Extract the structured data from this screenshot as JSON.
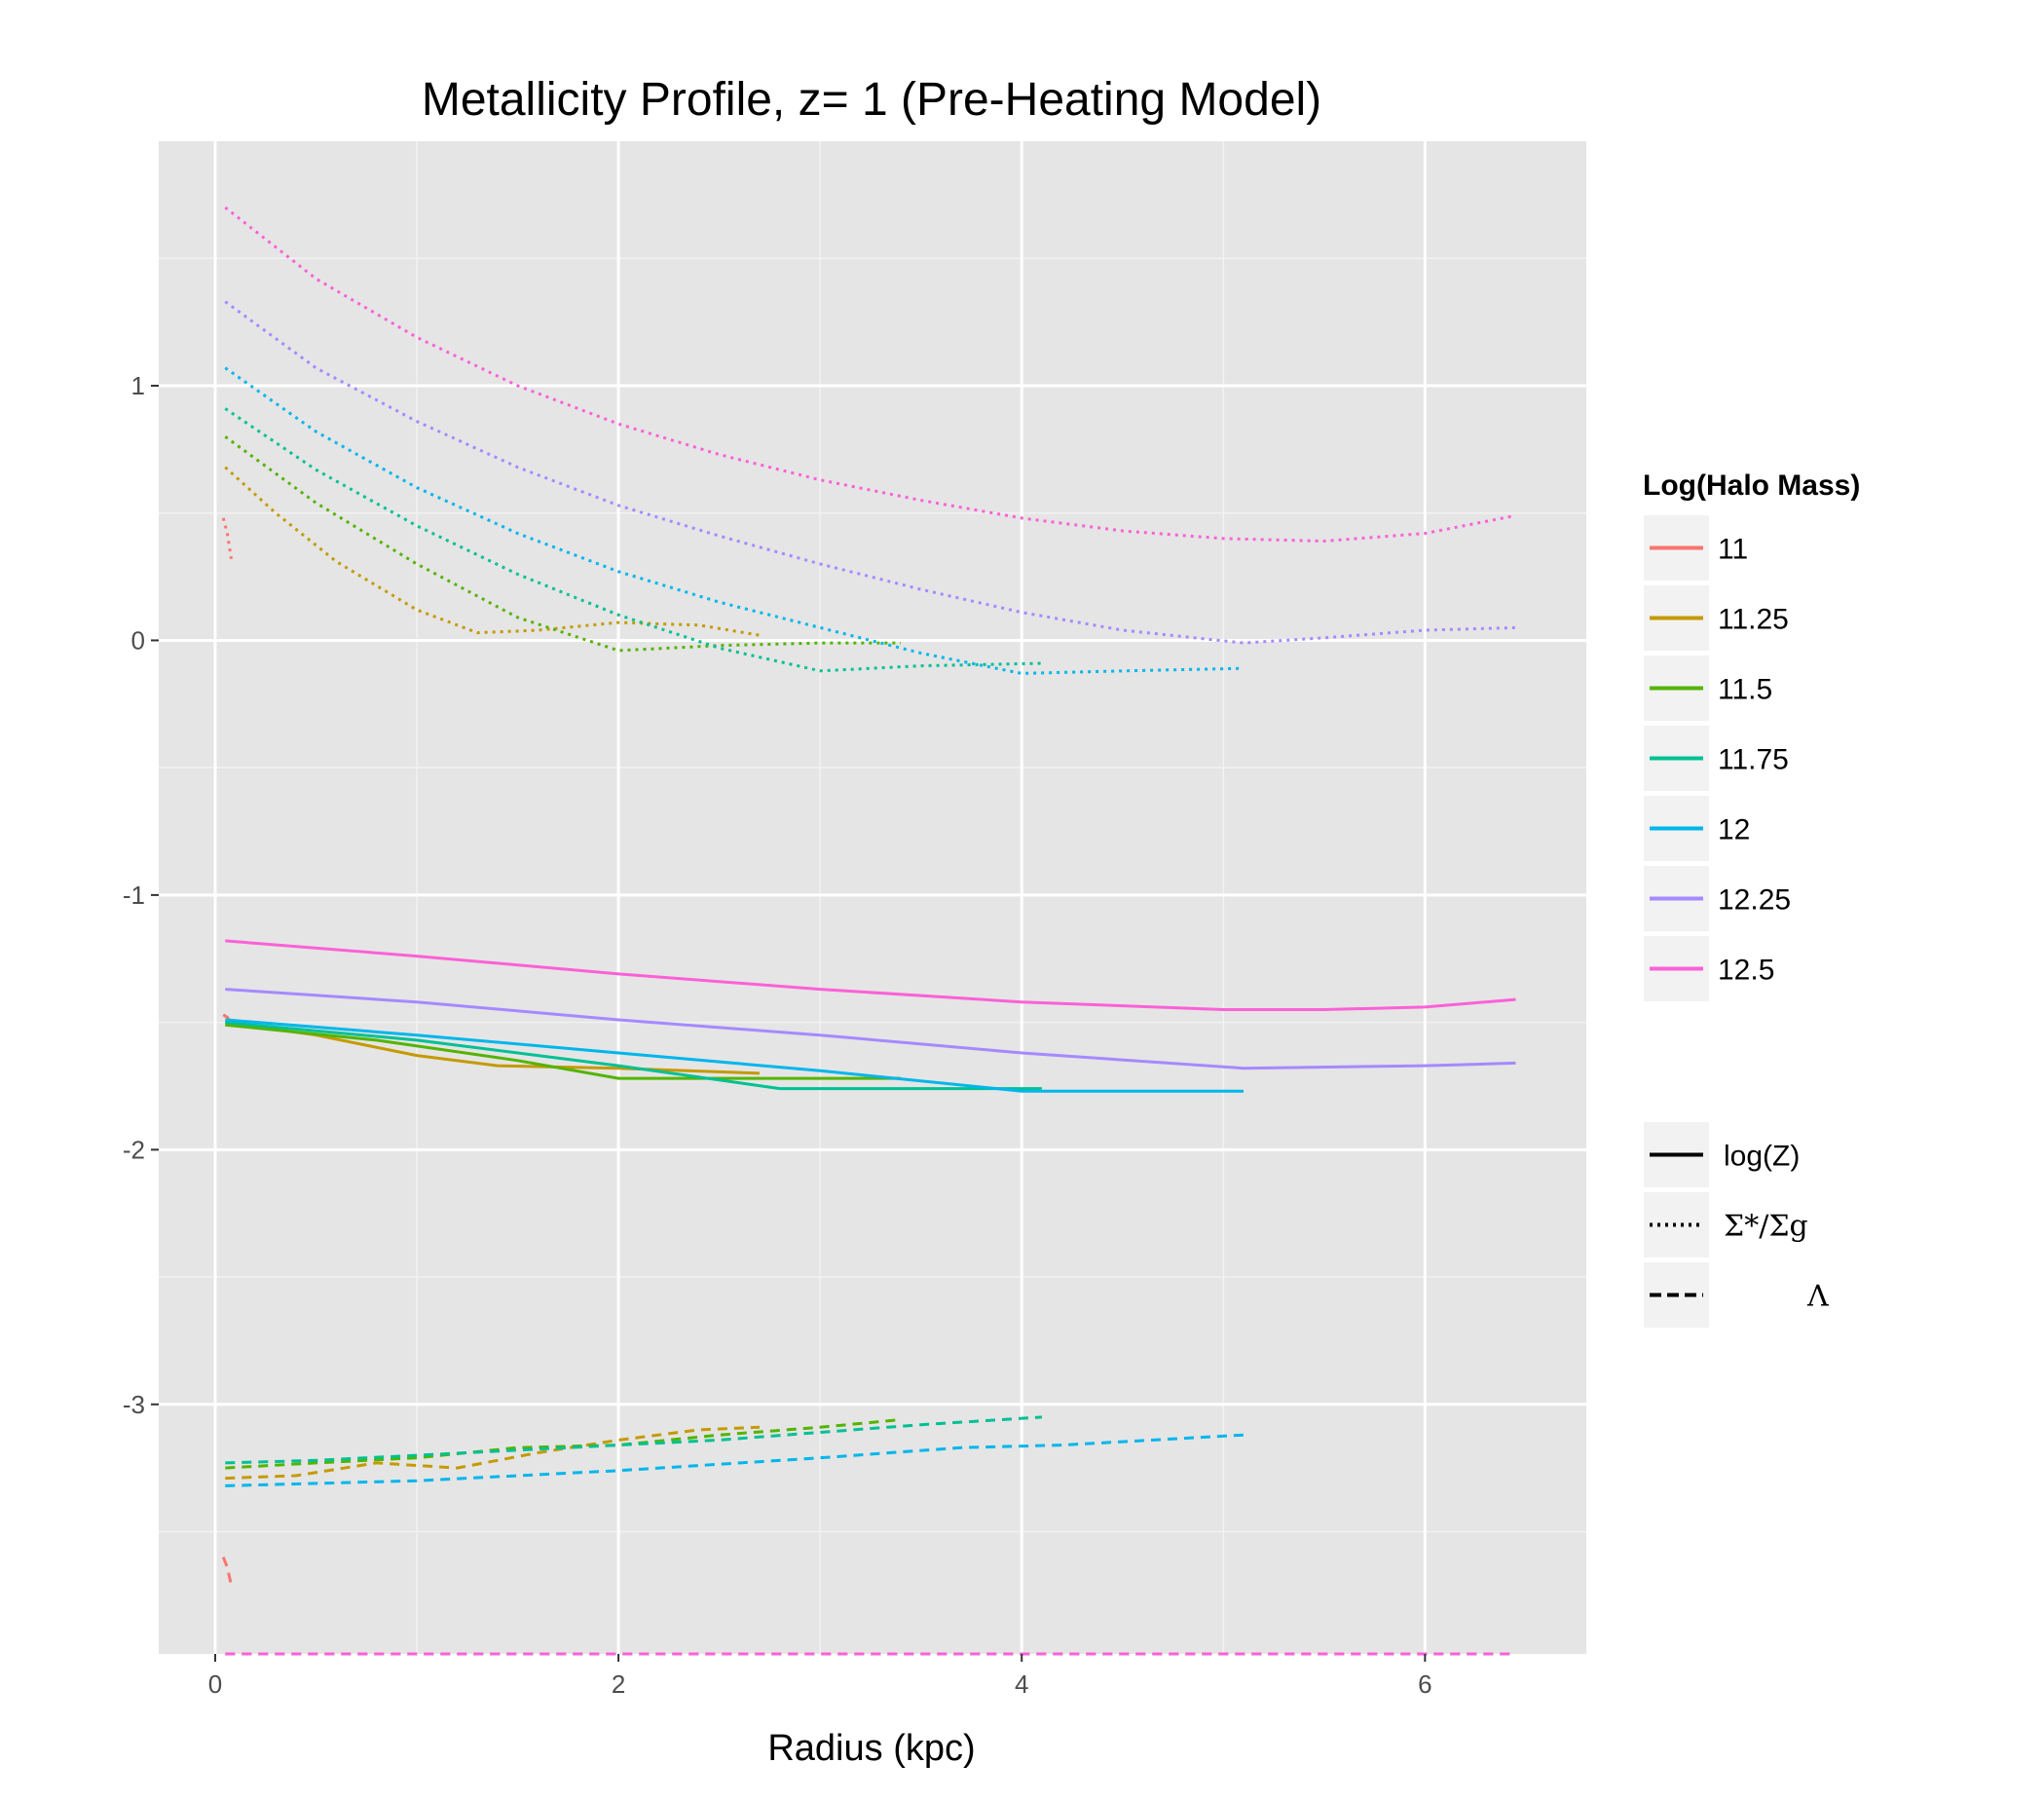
{
  "chart_data": {
    "type": "line",
    "title": "Metallicity Profile, z= 1 (Pre-Heating Model)",
    "xlabel": "Radius (kpc)",
    "ylabel": "",
    "xlim": [
      -0.28,
      6.8
    ],
    "ylim": [
      -3.98,
      1.96
    ],
    "x_ticks": [
      0,
      2,
      4,
      6
    ],
    "x_tick_labels": [
      "0",
      "2",
      "4",
      "6"
    ],
    "y_ticks": [
      1,
      0,
      -1,
      -2,
      -3
    ],
    "y_tick_labels": [
      "1",
      "0",
      "-1",
      "-2",
      "-3"
    ],
    "grid": true,
    "legend_position": "right",
    "color_legend": {
      "title": "Log(Halo Mass)",
      "entries": [
        {
          "label": "11",
          "color": "#F8766D"
        },
        {
          "label": "11.25",
          "color": "#C49A00"
        },
        {
          "label": "11.5",
          "color": "#53B400"
        },
        {
          "label": "11.75",
          "color": "#00C094"
        },
        {
          "label": "12",
          "color": "#00B6EB"
        },
        {
          "label": "12.25",
          "color": "#A58AFF"
        },
        {
          "label": "12.5",
          "color": "#FB61D7"
        }
      ]
    },
    "linetype_legend": {
      "entries": [
        {
          "label": "log(Z)",
          "style": "solid"
        },
        {
          "label": "Σ*/Σg",
          "style": "dotted"
        },
        {
          "label": "Λ",
          "style": "dashed"
        }
      ]
    },
    "series": [
      {
        "mass": "11",
        "quantity": "log(Z)",
        "style": "solid",
        "points": [
          [
            0.04,
            -1.47
          ],
          [
            0.06,
            -1.48
          ],
          [
            0.08,
            -1.5
          ]
        ]
      },
      {
        "mass": "11.25",
        "quantity": "log(Z)",
        "style": "solid",
        "points": [
          [
            0.05,
            -1.5
          ],
          [
            0.5,
            -1.55
          ],
          [
            1.0,
            -1.63
          ],
          [
            1.4,
            -1.67
          ],
          [
            2.0,
            -1.68
          ],
          [
            2.7,
            -1.7
          ]
        ]
      },
      {
        "mass": "11.5",
        "quantity": "log(Z)",
        "style": "solid",
        "points": [
          [
            0.05,
            -1.51
          ],
          [
            0.8,
            -1.57
          ],
          [
            1.5,
            -1.65
          ],
          [
            2.0,
            -1.72
          ],
          [
            2.5,
            -1.72
          ],
          [
            3.4,
            -1.72
          ]
        ]
      },
      {
        "mass": "11.75",
        "quantity": "log(Z)",
        "style": "solid",
        "points": [
          [
            0.05,
            -1.5
          ],
          [
            1.0,
            -1.57
          ],
          [
            2.0,
            -1.67
          ],
          [
            2.8,
            -1.76
          ],
          [
            3.5,
            -1.76
          ],
          [
            4.1,
            -1.76
          ]
        ]
      },
      {
        "mass": "12",
        "quantity": "log(Z)",
        "style": "solid",
        "points": [
          [
            0.05,
            -1.49
          ],
          [
            1.0,
            -1.55
          ],
          [
            2.0,
            -1.62
          ],
          [
            3.0,
            -1.69
          ],
          [
            4.0,
            -1.77
          ],
          [
            5.1,
            -1.77
          ]
        ]
      },
      {
        "mass": "12.25",
        "quantity": "log(Z)",
        "style": "solid",
        "points": [
          [
            0.05,
            -1.37
          ],
          [
            1.0,
            -1.42
          ],
          [
            2.0,
            -1.49
          ],
          [
            3.0,
            -1.55
          ],
          [
            4.0,
            -1.62
          ],
          [
            5.1,
            -1.68
          ],
          [
            6.0,
            -1.67
          ],
          [
            6.45,
            -1.66
          ]
        ]
      },
      {
        "mass": "12.5",
        "quantity": "log(Z)",
        "style": "solid",
        "points": [
          [
            0.05,
            -1.18
          ],
          [
            1.0,
            -1.24
          ],
          [
            2.0,
            -1.31
          ],
          [
            3.0,
            -1.37
          ],
          [
            4.0,
            -1.42
          ],
          [
            5.0,
            -1.45
          ],
          [
            5.5,
            -1.45
          ],
          [
            6.0,
            -1.44
          ],
          [
            6.45,
            -1.41
          ]
        ]
      },
      {
        "mass": "11",
        "quantity": "Σ*/Σg",
        "style": "dotted",
        "points": [
          [
            0.04,
            0.48
          ],
          [
            0.06,
            0.42
          ],
          [
            0.08,
            0.32
          ]
        ]
      },
      {
        "mass": "11.25",
        "quantity": "Σ*/Σg",
        "style": "dotted",
        "points": [
          [
            0.05,
            0.68
          ],
          [
            0.3,
            0.5
          ],
          [
            0.6,
            0.31
          ],
          [
            1.0,
            0.12
          ],
          [
            1.3,
            0.03
          ],
          [
            1.6,
            0.04
          ],
          [
            2.0,
            0.07
          ],
          [
            2.4,
            0.06
          ],
          [
            2.7,
            0.02
          ]
        ]
      },
      {
        "mass": "11.5",
        "quantity": "Σ*/Σg",
        "style": "dotted",
        "points": [
          [
            0.05,
            0.8
          ],
          [
            0.5,
            0.54
          ],
          [
            1.0,
            0.3
          ],
          [
            1.5,
            0.09
          ],
          [
            2.0,
            -0.04
          ],
          [
            2.5,
            -0.02
          ],
          [
            3.0,
            -0.01
          ],
          [
            3.4,
            -0.01
          ]
        ]
      },
      {
        "mass": "11.75",
        "quantity": "Σ*/Σg",
        "style": "dotted",
        "points": [
          [
            0.05,
            0.91
          ],
          [
            0.5,
            0.67
          ],
          [
            1.0,
            0.45
          ],
          [
            1.5,
            0.26
          ],
          [
            2.0,
            0.1
          ],
          [
            2.5,
            -0.03
          ],
          [
            3.0,
            -0.12
          ],
          [
            3.5,
            -0.1
          ],
          [
            4.1,
            -0.09
          ]
        ]
      },
      {
        "mass": "12",
        "quantity": "Σ*/Σg",
        "style": "dotted",
        "points": [
          [
            0.05,
            1.07
          ],
          [
            0.5,
            0.82
          ],
          [
            1.0,
            0.6
          ],
          [
            1.5,
            0.42
          ],
          [
            2.0,
            0.27
          ],
          [
            2.5,
            0.15
          ],
          [
            3.0,
            0.05
          ],
          [
            3.5,
            -0.05
          ],
          [
            4.0,
            -0.13
          ],
          [
            4.5,
            -0.12
          ],
          [
            5.1,
            -0.11
          ]
        ]
      },
      {
        "mass": "12.25",
        "quantity": "Σ*/Σg",
        "style": "dotted",
        "points": [
          [
            0.05,
            1.33
          ],
          [
            0.5,
            1.07
          ],
          [
            1.0,
            0.86
          ],
          [
            1.5,
            0.68
          ],
          [
            2.0,
            0.53
          ],
          [
            2.5,
            0.41
          ],
          [
            3.0,
            0.3
          ],
          [
            3.5,
            0.2
          ],
          [
            4.0,
            0.11
          ],
          [
            4.5,
            0.04
          ],
          [
            5.1,
            -0.01
          ],
          [
            5.5,
            0.01
          ],
          [
            6.0,
            0.04
          ],
          [
            6.45,
            0.05
          ]
        ]
      },
      {
        "mass": "12.5",
        "quantity": "Σ*/Σg",
        "style": "dotted",
        "points": [
          [
            0.05,
            1.7
          ],
          [
            0.5,
            1.42
          ],
          [
            1.0,
            1.19
          ],
          [
            1.5,
            1.0
          ],
          [
            2.0,
            0.85
          ],
          [
            2.5,
            0.73
          ],
          [
            3.0,
            0.63
          ],
          [
            3.5,
            0.55
          ],
          [
            4.0,
            0.48
          ],
          [
            4.5,
            0.43
          ],
          [
            5.0,
            0.4
          ],
          [
            5.5,
            0.39
          ],
          [
            6.0,
            0.42
          ],
          [
            6.45,
            0.49
          ]
        ]
      },
      {
        "mass": "11",
        "quantity": "Λ",
        "style": "dashed",
        "points": [
          [
            0.04,
            -3.6
          ],
          [
            0.06,
            -3.64
          ],
          [
            0.08,
            -3.71
          ]
        ]
      },
      {
        "mass": "11.25",
        "quantity": "Λ",
        "style": "dashed",
        "points": [
          [
            0.05,
            -3.29
          ],
          [
            0.4,
            -3.28
          ],
          [
            0.8,
            -3.23
          ],
          [
            1.2,
            -3.25
          ],
          [
            1.6,
            -3.19
          ],
          [
            2.0,
            -3.14
          ],
          [
            2.4,
            -3.1
          ],
          [
            2.7,
            -3.09
          ]
        ]
      },
      {
        "mass": "11.5",
        "quantity": "Λ",
        "style": "dashed",
        "points": [
          [
            0.05,
            -3.25
          ],
          [
            0.5,
            -3.23
          ],
          [
            1.0,
            -3.21
          ],
          [
            1.5,
            -3.17
          ],
          [
            2.0,
            -3.16
          ],
          [
            2.5,
            -3.12
          ],
          [
            3.0,
            -3.09
          ],
          [
            3.4,
            -3.06
          ]
        ]
      },
      {
        "mass": "11.75",
        "quantity": "Λ",
        "style": "dashed",
        "points": [
          [
            0.05,
            -3.23
          ],
          [
            0.5,
            -3.22
          ],
          [
            1.0,
            -3.2
          ],
          [
            1.5,
            -3.18
          ],
          [
            2.0,
            -3.16
          ],
          [
            2.5,
            -3.14
          ],
          [
            3.0,
            -3.11
          ],
          [
            3.5,
            -3.08
          ],
          [
            4.1,
            -3.05
          ]
        ]
      },
      {
        "mass": "12",
        "quantity": "Λ",
        "style": "dashed",
        "points": [
          [
            0.05,
            -3.32
          ],
          [
            1.0,
            -3.3
          ],
          [
            2.0,
            -3.26
          ],
          [
            3.0,
            -3.21
          ],
          [
            3.7,
            -3.17
          ],
          [
            4.2,
            -3.16
          ],
          [
            5.1,
            -3.12
          ]
        ]
      },
      {
        "mass": "12.25",
        "quantity": "Λ",
        "style": "dashed",
        "points": [
          [
            0.05,
            -3.98
          ],
          [
            6.45,
            -3.98
          ]
        ]
      },
      {
        "mass": "12.5",
        "quantity": "Λ",
        "style": "dashed",
        "points": [
          [
            0.05,
            -3.98
          ],
          [
            6.45,
            -3.98
          ]
        ]
      }
    ]
  }
}
